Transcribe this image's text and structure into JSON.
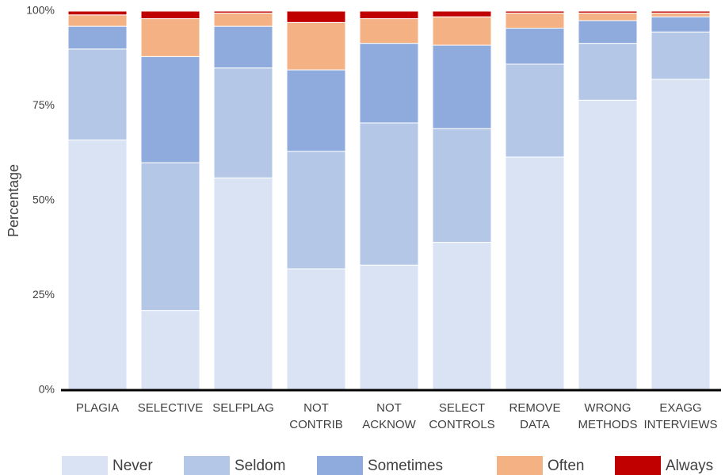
{
  "chart_data": {
    "type": "stacked_bar",
    "y_label": "Percentage",
    "categories": [
      "PLAGIA",
      "SELECTIVE",
      "SELFPLAG",
      "NOT CONTRIB",
      "NOT ACKNOW",
      "SELECT CONTROLS",
      "REMOVE DATA",
      "WRONG METHODS",
      "EXAGG INTERVIEWS"
    ],
    "series": [
      {
        "name": "Never",
        "color": "#dae3f3",
        "values": [
          66,
          21,
          56,
          32,
          33,
          39,
          61.5,
          76.5,
          82
        ]
      },
      {
        "name": "Seldom",
        "color": "#b4c7e7",
        "values": [
          24,
          39,
          29,
          31,
          37.5,
          30,
          24.5,
          15,
          12.5
        ]
      },
      {
        "name": "Sometimes",
        "color": "#8faadc",
        "values": [
          6,
          28,
          11,
          21.5,
          21,
          22,
          9.5,
          6,
          4
        ]
      },
      {
        "name": "Often",
        "color": "#f4b183",
        "values": [
          3,
          10,
          3.5,
          12.5,
          6.5,
          7.5,
          4,
          2,
          1
        ]
      },
      {
        "name": "Always",
        "color": "#c00000",
        "values": [
          1,
          2,
          0.5,
          3,
          2,
          1.5,
          0.5,
          0.5,
          0.5
        ]
      }
    ],
    "ylim": [
      0,
      100
    ],
    "yticks": [
      {
        "value": 0,
        "label": "0%"
      },
      {
        "value": 25,
        "label": "25%"
      },
      {
        "value": 50,
        "label": "50%"
      },
      {
        "value": 75,
        "label": "75%"
      },
      {
        "value": 100,
        "label": "100%"
      }
    ],
    "grid": false,
    "legend": "bottom"
  }
}
